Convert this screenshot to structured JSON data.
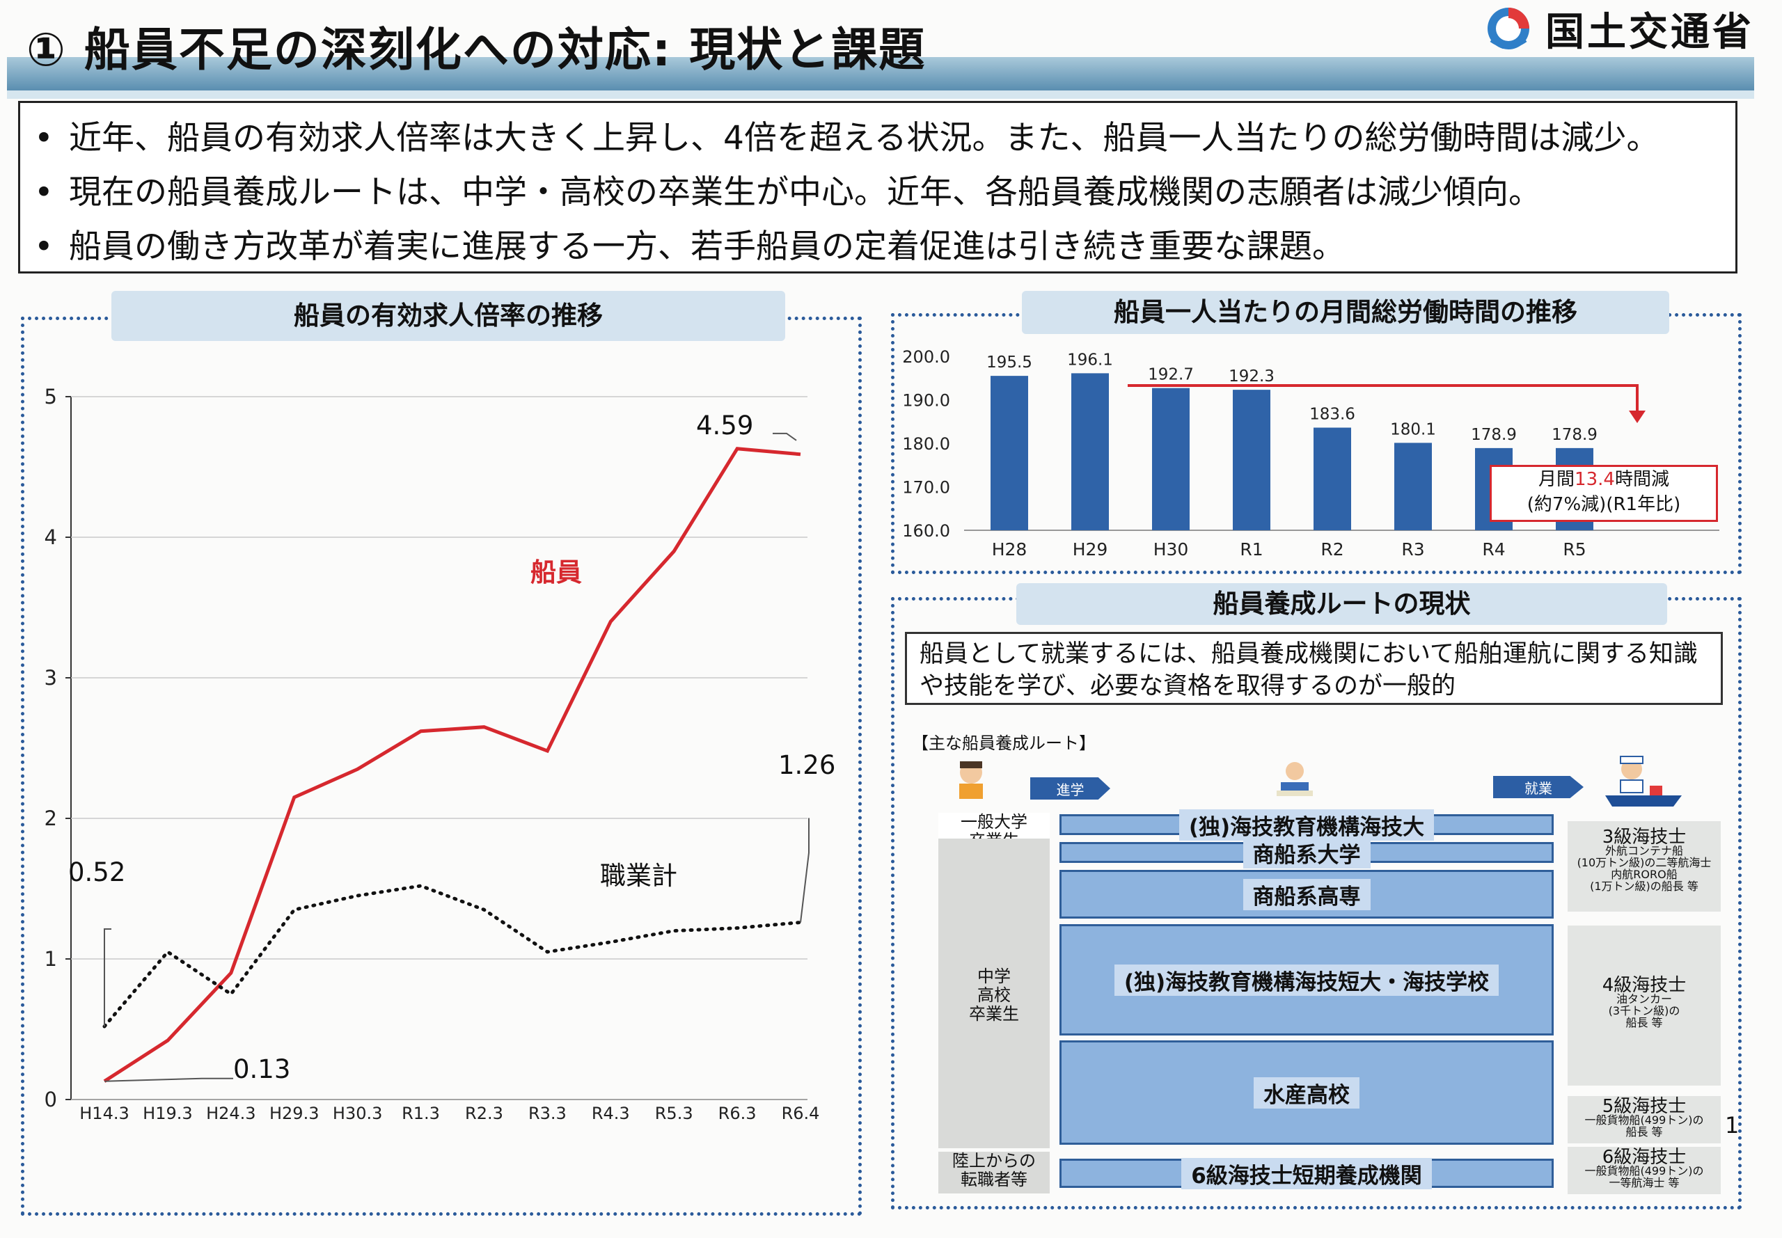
{
  "header": {
    "title": "① 船員不足の深刻化への対応: 現状と課題",
    "ministry": "国土交通省"
  },
  "summary": {
    "bullets": [
      "近年、船員の有効求人倍率は大きく上昇し、4倍を超える状況。また、船員一人当たりの総労働時間は減少。",
      "現在の船員養成ルートは、中学・高校の卒業生が中心。近年、各船員養成機関の志願者は減少傾向。",
      "船員の働き方改革が着実に進展する一方、若手船員の定着促進は引き続き重要な課題。"
    ],
    "bullet_mark": "•"
  },
  "panel_left": {
    "title": "船員の有効求人倍率の推移"
  },
  "panel_right_top": {
    "title": "船員一人当たりの月間総労働時間の推移",
    "callout": {
      "line1_prefix": "月間",
      "line1_highlight": "13.4",
      "line1_suffix": "時間減",
      "line2": "(約7%減)(R1年比)"
    }
  },
  "chart_data": [
    {
      "type": "line",
      "x": [
        "H14.3",
        "H19.3",
        "H24.3",
        "H29.3",
        "H30.3",
        "R1.3",
        "R2.3",
        "R3.3",
        "R4.3",
        "R5.3",
        "R6.3",
        "R6.4"
      ],
      "series": [
        {
          "name": "船員",
          "values": [
            0.13,
            0.42,
            0.9,
            2.15,
            2.35,
            2.62,
            2.65,
            2.48,
            3.4,
            3.9,
            4.63,
            4.59
          ],
          "color": "#d6282e"
        },
        {
          "name": "職業計",
          "values": [
            0.52,
            1.05,
            0.75,
            1.35,
            1.45,
            1.52,
            1.35,
            1.05,
            1.12,
            1.2,
            1.22,
            1.26
          ],
          "color": "#111111"
        }
      ],
      "ylim": [
        0,
        5
      ],
      "yticks": [
        "0",
        "1",
        "2",
        "3",
        "4",
        "5"
      ],
      "annotations": {
        "seiin_start": "0.13",
        "seiin_end": "4.59",
        "shokugyo_start": "0.52",
        "shokugyo_end": "1.26"
      }
    },
    {
      "type": "bar",
      "categories": [
        "H28",
        "H29",
        "H30",
        "R1",
        "R2",
        "R3",
        "R4",
        "R5"
      ],
      "values": [
        195.5,
        196.1,
        192.7,
        192.3,
        183.6,
        180.1,
        178.9,
        178.9
      ],
      "value_labels": [
        "195.5",
        "196.1",
        "192.7",
        "192.3",
        "183.6",
        "180.1",
        "178.9",
        "178.9"
      ],
      "ylim": [
        160,
        200
      ],
      "yticks": [
        "160.0",
        "170.0",
        "180.0",
        "190.0",
        "200.0"
      ],
      "color": "#2f63a8"
    }
  ],
  "panel_route": {
    "title": "船員養成ルートの現状",
    "description_line1": "船員として就業するには、船員養成機関において船舶運航に関する知識",
    "description_line2": "や技能を学び、必要な資格を取得するのが一般的",
    "subtitle": "【主な船員養成ルート】",
    "arrow_enter": "進学",
    "arrow_work": "就業",
    "sources": {
      "univ": "一般大学\n卒業生",
      "school": "中学\n高校\n卒業生",
      "career": "陸上からの\n転職者等"
    },
    "institutions": [
      "(独)海技教育機構海技大",
      "商船系大学",
      "商船系高専",
      "(独)海技教育機構海技短大・海技学校",
      "水産高校",
      "6級海技士短期養成機関"
    ],
    "licenses": [
      {
        "title": "3級海技士",
        "d1": "外航コンテナ船",
        "d2": "(10万トン級)の二等航海士",
        "d3": "内航RORO船",
        "d4": "(1万トン級)の船長 等"
      },
      {
        "title": "4級海技士",
        "d1": "油タンカー",
        "d2": "(3千トン級)の",
        "d3": "船長 等",
        "d4": ""
      },
      {
        "title": "5級海技士",
        "d1": "一般貨物船(499トン)の",
        "d2": "船長 等",
        "d3": "",
        "d4": ""
      },
      {
        "title": "6級海技士",
        "d1": "一般貨物船(499トン)の",
        "d2": "一等航海士 等",
        "d3": "",
        "d4": ""
      }
    ],
    "page_number": "1"
  }
}
